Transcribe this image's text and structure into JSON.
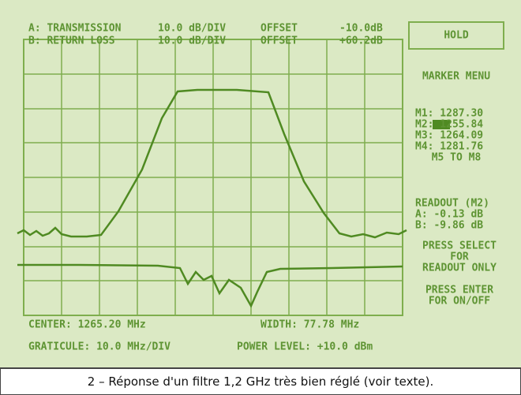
{
  "header": {
    "line_a": [
      "A: TRANSMISSION",
      "10.0 dB/DIV",
      "OFFSET",
      "-10.0dB"
    ],
    "line_b": [
      "B: RETURN LOSS",
      "10.0 dB/DIV",
      "OFFSET",
      "+60.2dB"
    ]
  },
  "menu": {
    "hold": "HOLD",
    "title": "MARKER MENU",
    "markers": [
      "M1: 1287.30",
      "M2: 1255.84",
      "M3: 1264.09",
      "M4: 1281.76"
    ],
    "more": "M5 TO M8",
    "readout": [
      "READOUT (M2)",
      "A: -0.13 dB",
      "B: -9.86 dB"
    ],
    "hints": [
      "PRESS SELECT",
      "FOR",
      "READOUT ONLY",
      "PRESS ENTER",
      "FOR ON/OFF"
    ]
  },
  "footer": {
    "center": "CENTER: 1265.20 MHz",
    "width": "WIDTH: 77.78 MHz",
    "graticule": "GRATICULE: 10.0 MHz/DIV",
    "power": "POWER LEVEL: +10.0 dBm"
  },
  "caption": "2 – Réponse d'un filtre 1,2 GHz très bien réglé (voir texte)."
}
